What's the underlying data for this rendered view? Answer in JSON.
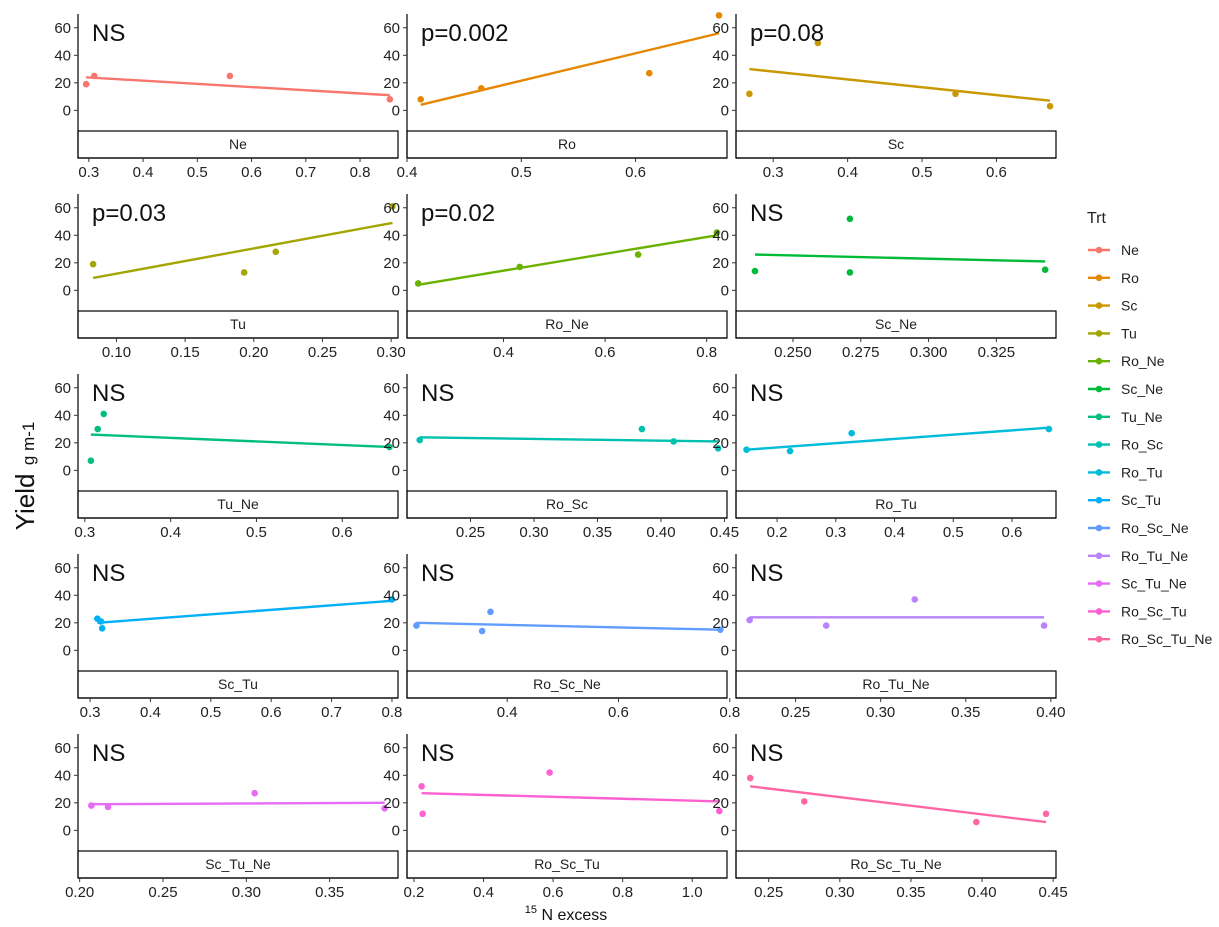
{
  "ylabel": {
    "main": "Yield",
    "sub": "g m-1"
  },
  "xlabel": {
    "sup": "15",
    "main": "N excess"
  },
  "legend": {
    "title": "Trt",
    "items": [
      {
        "label": "Ne",
        "color": "#F8766D"
      },
      {
        "label": "Ro",
        "color": "#E58700"
      },
      {
        "label": "Sc",
        "color": "#C99800"
      },
      {
        "label": "Tu",
        "color": "#A3A500"
      },
      {
        "label": "Ro_Ne",
        "color": "#6BB100"
      },
      {
        "label": "Sc_Ne",
        "color": "#00BA38"
      },
      {
        "label": "Tu_Ne",
        "color": "#00BF7D"
      },
      {
        "label": "Ro_Sc",
        "color": "#00C0AF"
      },
      {
        "label": "Ro_Tu",
        "color": "#00BCD8"
      },
      {
        "label": "Sc_Tu",
        "color": "#00B0F6"
      },
      {
        "label": "Ro_Sc_Ne",
        "color": "#619CFF"
      },
      {
        "label": "Ro_Tu_Ne",
        "color": "#B983FF"
      },
      {
        "label": "Sc_Tu_Ne",
        "color": "#E76BF3"
      },
      {
        "label": "Ro_Sc_Tu",
        "color": "#FD61D1"
      },
      {
        "label": "Ro_Sc_Tu_Ne",
        "color": "#FF67A4"
      }
    ]
  },
  "chart_data": [
    {
      "type": "scatter",
      "facet": "Ne",
      "annotation": "NS",
      "color": "#F8766D",
      "xlim": [
        0.28,
        0.87
      ],
      "xticks": [
        0.3,
        0.4,
        0.5,
        0.6,
        0.7,
        0.8
      ],
      "xtick_labels": [
        "0.3",
        "0.4",
        "0.5",
        "0.6",
        "0.7",
        "0.8"
      ],
      "ylim": [
        -15,
        70
      ],
      "yticks": [
        0,
        20,
        40,
        60
      ],
      "ytick_labels": [
        "0",
        "20",
        "40",
        "60"
      ],
      "points": [
        [
          0.295,
          19
        ],
        [
          0.31,
          25
        ],
        [
          0.56,
          25
        ],
        [
          0.855,
          8
        ]
      ],
      "fit": [
        [
          0.295,
          24
        ],
        [
          0.855,
          11
        ]
      ]
    },
    {
      "type": "scatter",
      "facet": "Ro",
      "annotation": "p=0.002",
      "color": "#E58700",
      "xlim": [
        0.4,
        0.68
      ],
      "xticks": [
        0.4,
        0.5,
        0.6
      ],
      "xtick_labels": [
        "0.4",
        "0.5",
        "0.6"
      ],
      "ylim": [
        -15,
        70
      ],
      "yticks": [
        0,
        20,
        40,
        60
      ],
      "ytick_labels": [
        "0",
        "20",
        "40",
        "60"
      ],
      "points": [
        [
          0.412,
          8
        ],
        [
          0.465,
          16
        ],
        [
          0.612,
          27
        ],
        [
          0.673,
          69
        ]
      ],
      "fit": [
        [
          0.412,
          4
        ],
        [
          0.673,
          56
        ]
      ]
    },
    {
      "type": "scatter",
      "facet": "Sc",
      "annotation": "p=0.08",
      "color": "#C99800",
      "xlim": [
        0.25,
        0.68
      ],
      "xticks": [
        0.3,
        0.4,
        0.5,
        0.6
      ],
      "xtick_labels": [
        "0.3",
        "0.4",
        "0.5",
        "0.6"
      ],
      "ylim": [
        -15,
        70
      ],
      "yticks": [
        0,
        20,
        40,
        60
      ],
      "ytick_labels": [
        "0",
        "20",
        "40",
        "60"
      ],
      "points": [
        [
          0.268,
          12
        ],
        [
          0.36,
          49
        ],
        [
          0.545,
          12
        ],
        [
          0.672,
          3
        ]
      ],
      "fit": [
        [
          0.268,
          30
        ],
        [
          0.672,
          7
        ]
      ]
    },
    {
      "type": "scatter",
      "facet": "Tu",
      "annotation": "p=0.03",
      "color": "#A3A500",
      "xlim": [
        0.072,
        0.305
      ],
      "xticks": [
        0.1,
        0.15,
        0.2,
        0.25,
        0.3
      ],
      "xtick_labels": [
        "0.10",
        "0.15",
        "0.20",
        "0.25",
        "0.30"
      ],
      "ylim": [
        -15,
        70
      ],
      "yticks": [
        0,
        20,
        40,
        60
      ],
      "ytick_labels": [
        "0",
        "20",
        "40",
        "60"
      ],
      "points": [
        [
          0.083,
          19
        ],
        [
          0.193,
          13
        ],
        [
          0.216,
          28
        ],
        [
          0.301,
          61
        ]
      ],
      "fit": [
        [
          0.083,
          9
        ],
        [
          0.301,
          49
        ]
      ]
    },
    {
      "type": "scatter",
      "facet": "Ro_Ne",
      "annotation": "p=0.02",
      "color": "#6BB100",
      "xlim": [
        0.21,
        0.84
      ],
      "xticks": [
        0.4,
        0.6,
        0.8
      ],
      "xtick_labels": [
        "0.4",
        "0.6",
        "0.8"
      ],
      "ylim": [
        -15,
        70
      ],
      "yticks": [
        0,
        20,
        40,
        60
      ],
      "ytick_labels": [
        "0",
        "20",
        "40",
        "60"
      ],
      "points": [
        [
          0.232,
          5
        ],
        [
          0.432,
          17
        ],
        [
          0.665,
          26
        ],
        [
          0.82,
          42
        ]
      ],
      "fit": [
        [
          0.232,
          4
        ],
        [
          0.82,
          40
        ]
      ]
    },
    {
      "type": "scatter",
      "facet": "Sc_Ne",
      "annotation": "NS",
      "color": "#00BA38",
      "xlim": [
        0.229,
        0.347
      ],
      "xticks": [
        0.25,
        0.275,
        0.3,
        0.325
      ],
      "xtick_labels": [
        "0.250",
        "0.275",
        "0.300",
        "0.325"
      ],
      "ylim": [
        -15,
        70
      ],
      "yticks": [
        0,
        20,
        40,
        60
      ],
      "ytick_labels": [
        "0",
        "20",
        "40",
        "60"
      ],
      "points": [
        [
          0.236,
          14
        ],
        [
          0.271,
          52
        ],
        [
          0.271,
          13
        ],
        [
          0.343,
          15
        ]
      ],
      "fit": [
        [
          0.236,
          26
        ],
        [
          0.343,
          21
        ]
      ]
    },
    {
      "type": "scatter",
      "facet": "Tu_Ne",
      "annotation": "NS",
      "color": "#00BF7D",
      "xlim": [
        0.292,
        0.665
      ],
      "xticks": [
        0.3,
        0.4,
        0.5,
        0.6
      ],
      "xtick_labels": [
        "0.3",
        "0.4",
        "0.5",
        "0.6"
      ],
      "ylim": [
        -15,
        70
      ],
      "yticks": [
        0,
        20,
        40,
        60
      ],
      "ytick_labels": [
        "0",
        "20",
        "40",
        "60"
      ],
      "points": [
        [
          0.307,
          7
        ],
        [
          0.315,
          30
        ],
        [
          0.322,
          41
        ],
        [
          0.655,
          17
        ]
      ],
      "fit": [
        [
          0.307,
          26
        ],
        [
          0.655,
          17
        ]
      ]
    },
    {
      "type": "scatter",
      "facet": "Ro_Sc",
      "annotation": "NS",
      "color": "#00C0AF",
      "xlim": [
        0.2,
        0.452
      ],
      "xticks": [
        0.25,
        0.3,
        0.35,
        0.4,
        0.45
      ],
      "xtick_labels": [
        "0.25",
        "0.30",
        "0.35",
        "0.40",
        "0.45"
      ],
      "ylim": [
        -15,
        70
      ],
      "yticks": [
        0,
        20,
        40,
        60
      ],
      "ytick_labels": [
        "0",
        "20",
        "40",
        "60"
      ],
      "points": [
        [
          0.21,
          22
        ],
        [
          0.385,
          30
        ],
        [
          0.41,
          21
        ],
        [
          0.445,
          16
        ]
      ],
      "fit": [
        [
          0.21,
          24
        ],
        [
          0.445,
          21
        ]
      ]
    },
    {
      "type": "scatter",
      "facet": "Ro_Tu",
      "annotation": "NS",
      "color": "#00BCD8",
      "xlim": [
        0.13,
        0.675
      ],
      "xticks": [
        0.2,
        0.3,
        0.4,
        0.5,
        0.6
      ],
      "xtick_labels": [
        "0.2",
        "0.3",
        "0.4",
        "0.5",
        "0.6"
      ],
      "ylim": [
        -15,
        70
      ],
      "yticks": [
        0,
        20,
        40,
        60
      ],
      "ytick_labels": [
        "0",
        "20",
        "40",
        "60"
      ],
      "points": [
        [
          0.148,
          15
        ],
        [
          0.222,
          14
        ],
        [
          0.327,
          27
        ],
        [
          0.663,
          30
        ]
      ],
      "fit": [
        [
          0.148,
          15
        ],
        [
          0.663,
          31
        ]
      ]
    },
    {
      "type": "scatter",
      "facet": "Sc_Tu",
      "annotation": "NS",
      "color": "#00B0F6",
      "xlim": [
        0.28,
        0.81
      ],
      "xticks": [
        0.3,
        0.4,
        0.5,
        0.6,
        0.7,
        0.8
      ],
      "xtick_labels": [
        "0.3",
        "0.4",
        "0.5",
        "0.6",
        "0.7",
        "0.8"
      ],
      "ylim": [
        -15,
        70
      ],
      "yticks": [
        0,
        20,
        40,
        60
      ],
      "ytick_labels": [
        "0",
        "20",
        "40",
        "60"
      ],
      "points": [
        [
          0.312,
          23
        ],
        [
          0.318,
          21
        ],
        [
          0.32,
          16
        ],
        [
          0.8,
          37
        ]
      ],
      "fit": [
        [
          0.312,
          20
        ],
        [
          0.8,
          36
        ]
      ]
    },
    {
      "type": "scatter",
      "facet": "Ro_Sc_Ne",
      "annotation": "NS",
      "color": "#619CFF",
      "xlim": [
        0.22,
        0.795
      ],
      "xticks": [
        0.4,
        0.6,
        0.8
      ],
      "xtick_labels": [
        "0.4",
        "0.6",
        "0.8"
      ],
      "ylim": [
        -15,
        70
      ],
      "yticks": [
        0,
        20,
        40,
        60
      ],
      "ytick_labels": [
        "0",
        "20",
        "40",
        "60"
      ],
      "points": [
        [
          0.237,
          18
        ],
        [
          0.355,
          14
        ],
        [
          0.37,
          28
        ],
        [
          0.783,
          15
        ]
      ],
      "fit": [
        [
          0.237,
          20
        ],
        [
          0.783,
          15
        ]
      ]
    },
    {
      "type": "scatter",
      "facet": "Ro_Tu_Ne",
      "annotation": "NS",
      "color": "#B983FF",
      "xlim": [
        0.215,
        0.403
      ],
      "xticks": [
        0.25,
        0.3,
        0.35,
        0.4
      ],
      "xtick_labels": [
        "0.25",
        "0.30",
        "0.35",
        "0.40"
      ],
      "ylim": [
        -15,
        70
      ],
      "yticks": [
        0,
        20,
        40,
        60
      ],
      "ytick_labels": [
        "0",
        "20",
        "40",
        "60"
      ],
      "points": [
        [
          0.223,
          22
        ],
        [
          0.268,
          18
        ],
        [
          0.32,
          37
        ],
        [
          0.396,
          18
        ]
      ],
      "fit": [
        [
          0.223,
          24
        ],
        [
          0.396,
          24
        ]
      ]
    },
    {
      "type": "scatter",
      "facet": "Sc_Tu_Ne",
      "annotation": "NS",
      "color": "#E76BF3",
      "xlim": [
        0.199,
        0.391
      ],
      "xticks": [
        0.2,
        0.25,
        0.3,
        0.35
      ],
      "xtick_labels": [
        "0.20",
        "0.25",
        "0.30",
        "0.35"
      ],
      "ylim": [
        -15,
        70
      ],
      "yticks": [
        0,
        20,
        40,
        60
      ],
      "ytick_labels": [
        "0",
        "20",
        "40",
        "60"
      ],
      "points": [
        [
          0.207,
          18
        ],
        [
          0.217,
          17
        ],
        [
          0.305,
          27
        ],
        [
          0.383,
          16
        ]
      ],
      "fit": [
        [
          0.207,
          19
        ],
        [
          0.383,
          20
        ]
      ]
    },
    {
      "type": "scatter",
      "facet": "Ro_Sc_Tu",
      "annotation": "NS",
      "color": "#FD61D1",
      "xlim": [
        0.18,
        1.1
      ],
      "xticks": [
        0.2,
        0.4,
        0.6,
        0.8,
        1.0
      ],
      "xtick_labels": [
        "0.2",
        "0.4",
        "0.6",
        "0.8",
        "1.0"
      ],
      "ylim": [
        -15,
        70
      ],
      "yticks": [
        0,
        20,
        40,
        60
      ],
      "ytick_labels": [
        "0",
        "20",
        "40",
        "60"
      ],
      "points": [
        [
          0.222,
          32
        ],
        [
          0.225,
          12
        ],
        [
          0.59,
          42
        ],
        [
          1.078,
          14
        ]
      ],
      "fit": [
        [
          0.222,
          27
        ],
        [
          1.078,
          21
        ]
      ]
    },
    {
      "type": "scatter",
      "facet": "Ro_Sc_Tu_Ne",
      "annotation": "NS",
      "color": "#FF67A4",
      "xlim": [
        0.227,
        0.452
      ],
      "xticks": [
        0.25,
        0.3,
        0.35,
        0.4,
        0.45
      ],
      "xtick_labels": [
        "0.25",
        "0.30",
        "0.35",
        "0.40",
        "0.45"
      ],
      "ylim": [
        -15,
        70
      ],
      "yticks": [
        0,
        20,
        40,
        60
      ],
      "ytick_labels": [
        "0",
        "20",
        "40",
        "60"
      ],
      "points": [
        [
          0.237,
          38
        ],
        [
          0.275,
          21
        ],
        [
          0.396,
          6
        ],
        [
          0.445,
          12
        ]
      ],
      "fit": [
        [
          0.237,
          32
        ],
        [
          0.445,
          6
        ]
      ]
    }
  ]
}
